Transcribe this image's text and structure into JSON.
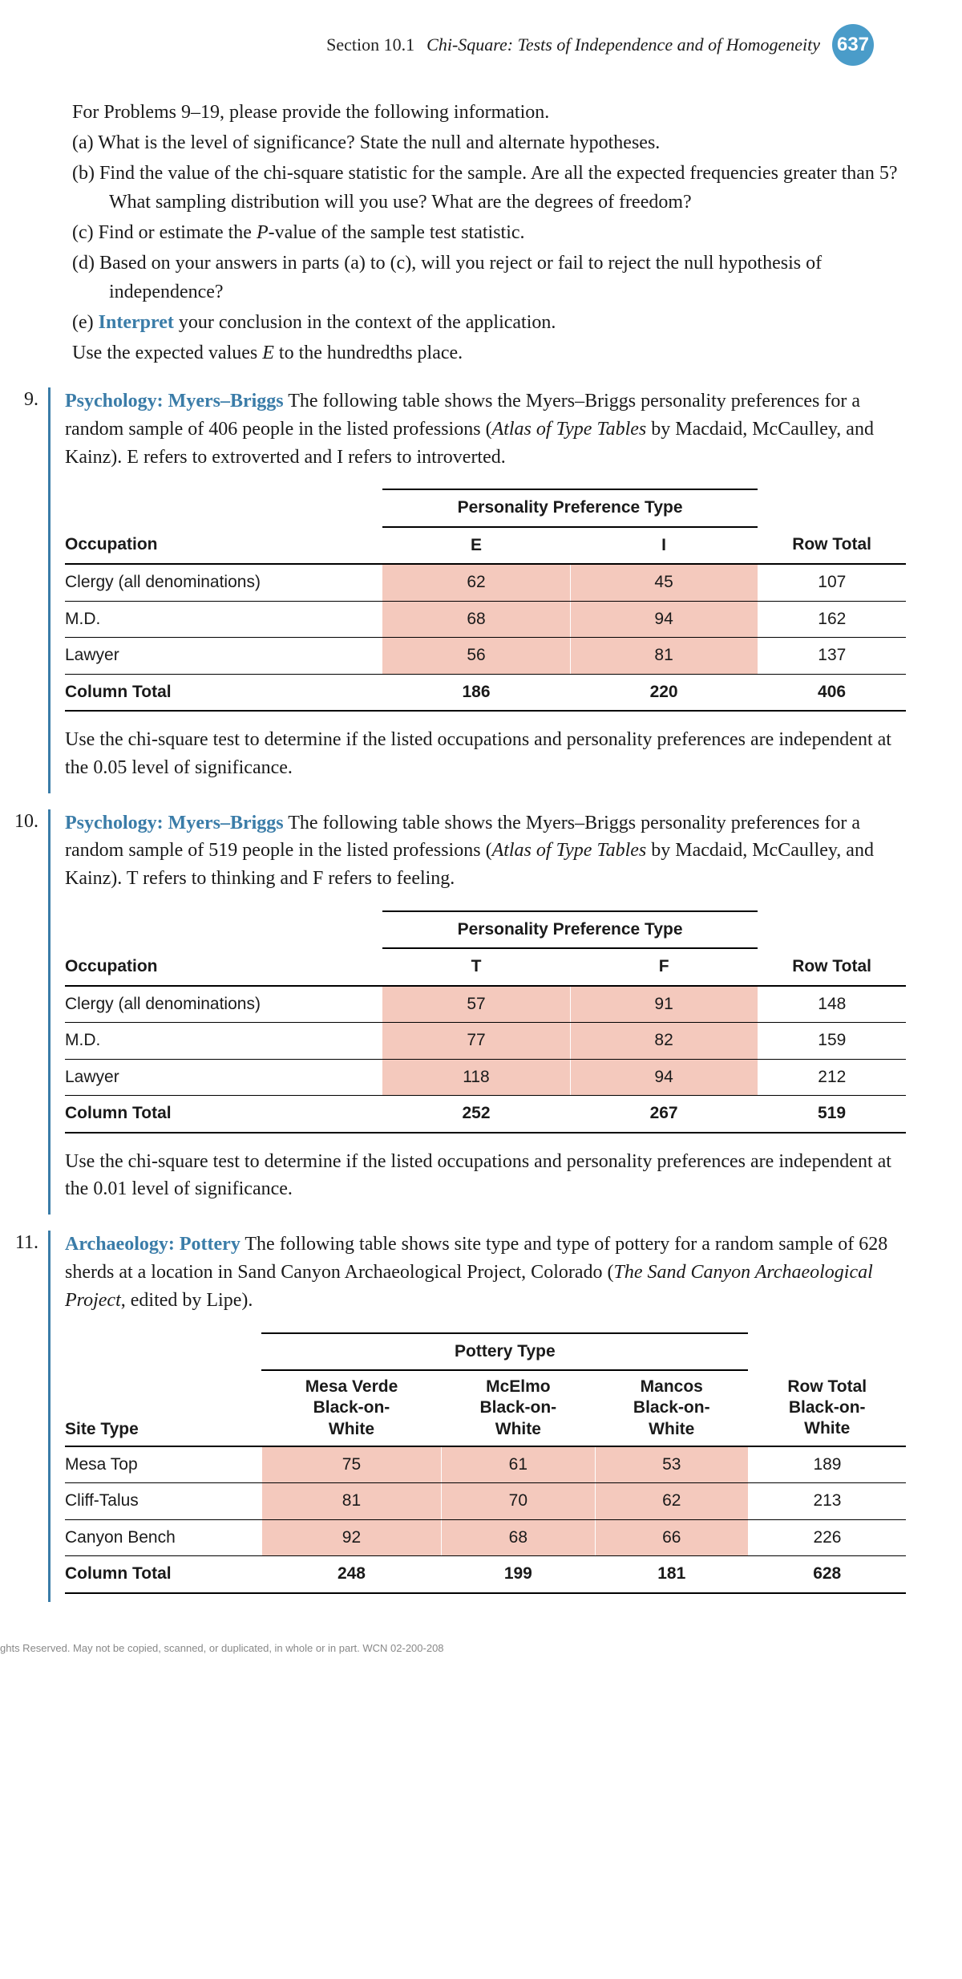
{
  "header": {
    "section": "Section 10.1",
    "title": "Chi-Square: Tests of Independence and of Homogeneity",
    "page": "637"
  },
  "intro": {
    "lead": "For Problems 9–19, please provide the following information.",
    "a": "(a) What is the level of significance? State the null and alternate hypotheses.",
    "b": "(b) Find the value of the chi-square statistic for the sample. Are all the expected frequencies greater than 5? What sampling distribution will you use? What are the degrees of freedom?",
    "c_pre": "(c) Find or estimate the ",
    "c_p": "P",
    "c_post": "-value of the sample test statistic.",
    "d": "(d) Based on your answers in parts (a) to (c), will you reject or fail to reject the null hypothesis of independence?",
    "e_pre": "(e) ",
    "e_word": "Interpret",
    "e_post": " your conclusion in the context of the application.",
    "tail_pre": "Use the expected values ",
    "tail_e": "E",
    "tail_post": " to the hundredths place."
  },
  "p9": {
    "num": "9.",
    "title": "Psychology: Myers–Briggs",
    "text1": "  The following table shows the Myers–Briggs personality preferences for a random sample of 406 people in the listed professions (",
    "cite": "Atlas of Type Tables",
    "text2": " by Macdaid, McCaulley, and Kainz). E refers to extroverted and I refers to introverted.",
    "super": "Personality Preference Type",
    "h_occ": "Occupation",
    "h_e": "E",
    "h_i": "I",
    "h_rt": "Row Total",
    "r1": {
      "o": "Clergy (all denominations)",
      "e": "62",
      "i": "45",
      "t": "107"
    },
    "r2": {
      "o": "M.D.",
      "e": "68",
      "i": "94",
      "t": "162"
    },
    "r3": {
      "o": "Lawyer",
      "e": "56",
      "i": "81",
      "t": "137"
    },
    "tot": {
      "o": "Column Total",
      "e": "186",
      "i": "220",
      "t": "406"
    },
    "instr": "Use the chi-square test to determine if the listed occupations and personality preferences are independent at the 0.05 level of significance."
  },
  "p10": {
    "num": "10.",
    "title": "Psychology: Myers–Briggs",
    "text1": "  The following table shows the Myers–Briggs personality preferences for a random sample of 519 people in the listed professions (",
    "cite": "Atlas of Type Tables",
    "text2": " by Macdaid, McCaulley, and Kainz). T refers to thinking and F refers to feeling.",
    "super": "Personality Preference Type",
    "h_occ": "Occupation",
    "h_t": "T",
    "h_f": "F",
    "h_rt": "Row Total",
    "r1": {
      "o": "Clergy (all denominations)",
      "t": "57",
      "f": "91",
      "rt": "148"
    },
    "r2": {
      "o": "M.D.",
      "t": "77",
      "f": "82",
      "rt": "159"
    },
    "r3": {
      "o": "Lawyer",
      "t": "118",
      "f": "94",
      "rt": "212"
    },
    "tot": {
      "o": "Column Total",
      "t": "252",
      "f": "267",
      "rt": "519"
    },
    "instr": "Use the chi-square test to determine if the listed occupations and personality preferences are independent at the 0.01 level of significance."
  },
  "p11": {
    "num": "11.",
    "title": "Archaeology: Pottery",
    "text1": "  The following table shows site type and type of pottery for a random sample of 628 sherds at a location in Sand Canyon Archaeological Project, Colorado (",
    "cite": "The Sand Canyon Archaeological Project",
    "text2": ", edited by Lipe).",
    "super": "Pottery Type",
    "h_site": "Site Type",
    "h_c1a": "Mesa Verde",
    "h_c1b": "Black-on-",
    "h_c1c": "White",
    "h_c2a": "McElmo",
    "h_c2b": "Black-on-",
    "h_c2c": "White",
    "h_c3a": "Mancos",
    "h_c3b": "Black-on-",
    "h_c3c": "White",
    "h_rta": "Row Total",
    "h_rtb": "Black-on-",
    "h_rtc": "White",
    "r1": {
      "s": "Mesa Top",
      "c1": "75",
      "c2": "61",
      "c3": "53",
      "t": "189"
    },
    "r2": {
      "s": "Cliff-Talus",
      "c1": "81",
      "c2": "70",
      "c3": "62",
      "t": "213"
    },
    "r3": {
      "s": "Canyon Bench",
      "c1": "92",
      "c2": "68",
      "c3": "66",
      "t": "226"
    },
    "tot": {
      "s": "Column Total",
      "c1": "248",
      "c2": "199",
      "c3": "181",
      "t": "628"
    }
  },
  "footer": "ghts Reserved. May not be copied, scanned, or duplicated, in whole or in part.  WCN 02-200-208"
}
